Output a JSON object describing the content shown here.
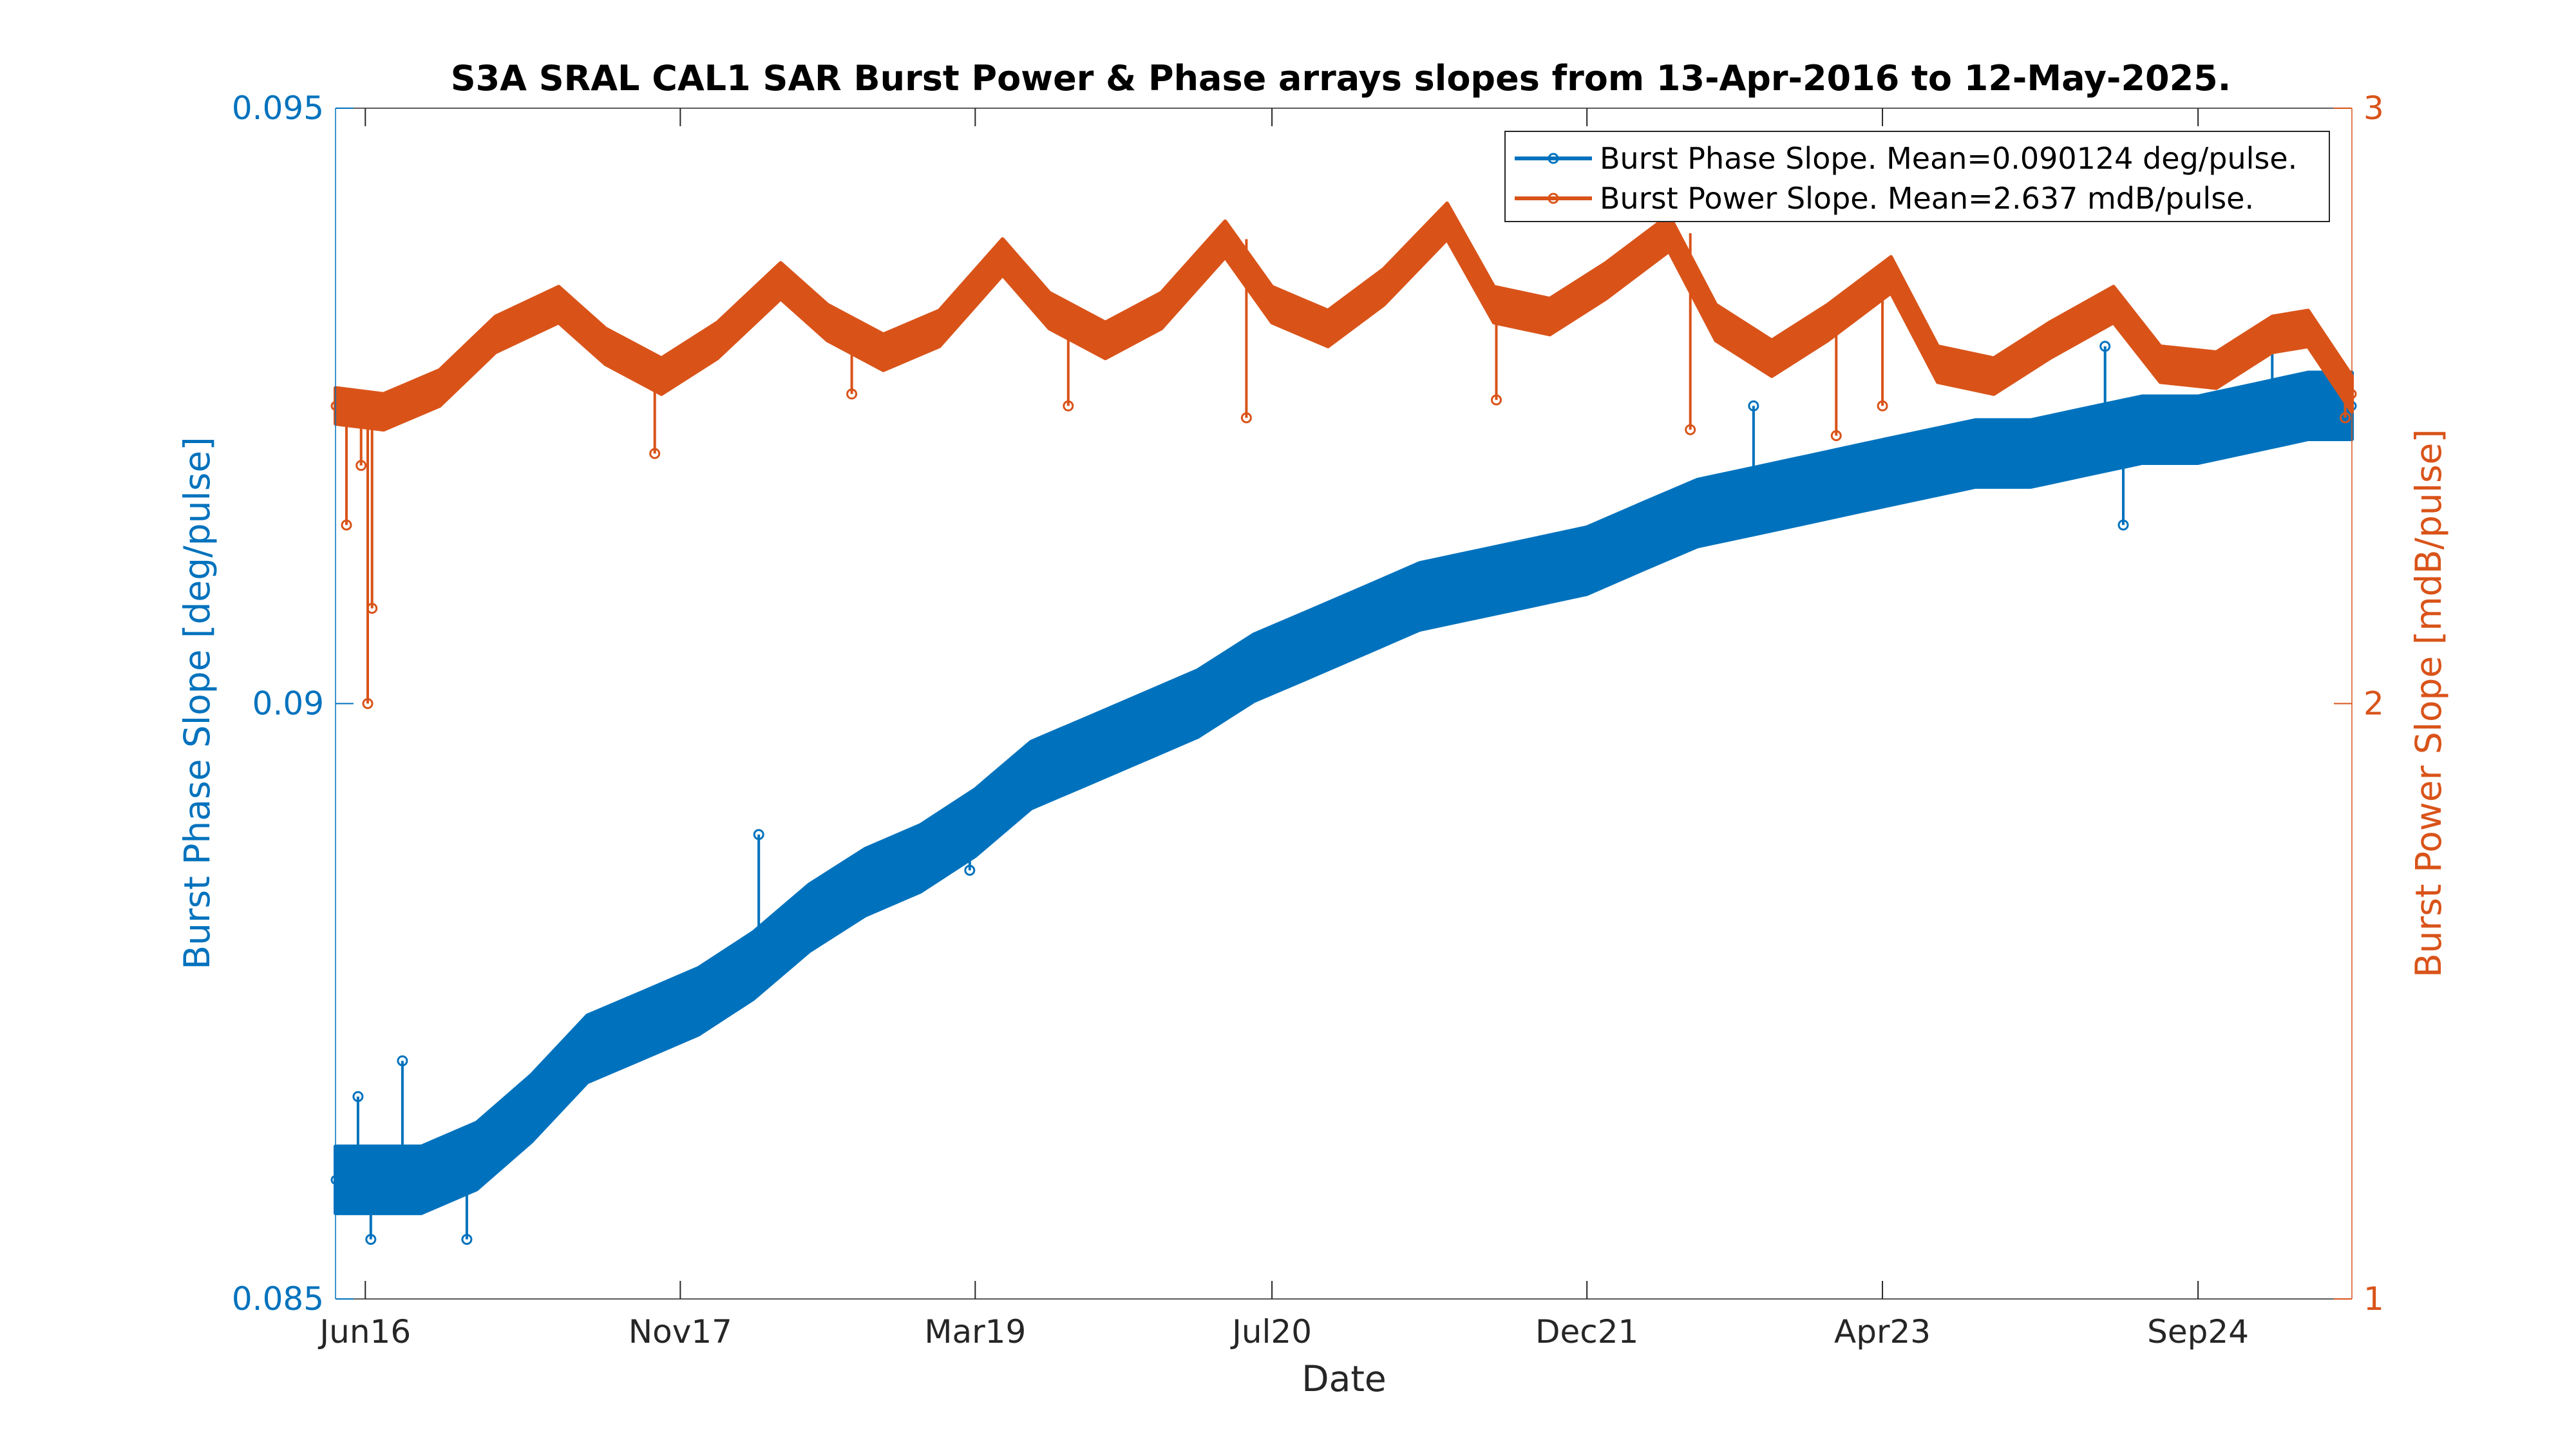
{
  "chart_data": {
    "type": "line",
    "title": "S3A SRAL CAL1 SAR Burst Power & Phase arrays slopes from 13-Apr-2016 to 12-May-2025.",
    "xlabel": "Date",
    "x_range": [
      "2016-04-13",
      "2025-05-12"
    ],
    "x_ticks": [
      {
        "date": "2016-06-01",
        "label": "Jun16"
      },
      {
        "date": "2017-11-01",
        "label": "Nov17"
      },
      {
        "date": "2019-03-01",
        "label": "Mar19"
      },
      {
        "date": "2020-07-01",
        "label": "Jul20"
      },
      {
        "date": "2021-12-01",
        "label": "Dec21"
      },
      {
        "date": "2023-04-01",
        "label": "Apr23"
      },
      {
        "date": "2024-09-01",
        "label": "Sep24"
      }
    ],
    "y_left": {
      "label": "Burst Phase Slope [deg/pulse]",
      "lim": [
        0.085,
        0.095
      ],
      "ticks": [
        "0.085",
        "0.09",
        "0.095"
      ],
      "color": "#0072BD"
    },
    "y_right": {
      "label": "Burst Power Slope [mdB/pulse]",
      "lim": [
        1,
        3
      ],
      "ticks": [
        "1",
        "2",
        "3"
      ],
      "color": "#D95319"
    },
    "legend_position": "top-right",
    "series": [
      {
        "name": "Burst Phase Slope. Mean=0.090124 deg/pulse.",
        "axis": "left",
        "color": "#0072BD",
        "band_halfwidth": 0.00028,
        "points": [
          {
            "x": "2016-04-13",
            "y": 0.086
          },
          {
            "x": "2016-06-01",
            "y": 0.086
          },
          {
            "x": "2016-09-01",
            "y": 0.086
          },
          {
            "x": "2016-12-01",
            "y": 0.0862
          },
          {
            "x": "2017-03-01",
            "y": 0.0866
          },
          {
            "x": "2017-06-01",
            "y": 0.0871
          },
          {
            "x": "2017-09-01",
            "y": 0.0873
          },
          {
            "x": "2017-12-01",
            "y": 0.0875
          },
          {
            "x": "2018-03-01",
            "y": 0.0878
          },
          {
            "x": "2018-06-01",
            "y": 0.0882
          },
          {
            "x": "2018-09-01",
            "y": 0.0885
          },
          {
            "x": "2018-12-01",
            "y": 0.0887
          },
          {
            "x": "2019-03-01",
            "y": 0.089
          },
          {
            "x": "2019-06-01",
            "y": 0.0894
          },
          {
            "x": "2019-09-01",
            "y": 0.0896
          },
          {
            "x": "2019-12-01",
            "y": 0.0898
          },
          {
            "x": "2020-03-01",
            "y": 0.09
          },
          {
            "x": "2020-06-01",
            "y": 0.0903
          },
          {
            "x": "2020-09-01",
            "y": 0.0905
          },
          {
            "x": "2020-12-01",
            "y": 0.0907
          },
          {
            "x": "2021-03-01",
            "y": 0.0909
          },
          {
            "x": "2021-06-01",
            "y": 0.091
          },
          {
            "x": "2021-09-01",
            "y": 0.0911
          },
          {
            "x": "2021-12-01",
            "y": 0.0912
          },
          {
            "x": "2022-03-01",
            "y": 0.0914
          },
          {
            "x": "2022-06-01",
            "y": 0.0916
          },
          {
            "x": "2022-09-01",
            "y": 0.0917
          },
          {
            "x": "2022-12-01",
            "y": 0.0918
          },
          {
            "x": "2023-03-01",
            "y": 0.0919
          },
          {
            "x": "2023-06-01",
            "y": 0.092
          },
          {
            "x": "2023-09-01",
            "y": 0.0921
          },
          {
            "x": "2023-12-01",
            "y": 0.0921
          },
          {
            "x": "2024-03-01",
            "y": 0.0922
          },
          {
            "x": "2024-06-01",
            "y": 0.0923
          },
          {
            "x": "2024-09-01",
            "y": 0.0923
          },
          {
            "x": "2024-12-01",
            "y": 0.0924
          },
          {
            "x": "2025-03-01",
            "y": 0.0925
          },
          {
            "x": "2025-05-12",
            "y": 0.0925
          }
        ],
        "outliers": [
          {
            "x": "2016-05-20",
            "y": 0.0867
          },
          {
            "x": "2016-08-01",
            "y": 0.087
          },
          {
            "x": "2016-06-10",
            "y": 0.0855
          },
          {
            "x": "2016-11-15",
            "y": 0.0855
          },
          {
            "x": "2018-03-10",
            "y": 0.0889
          },
          {
            "x": "2019-01-20",
            "y": 0.089
          },
          {
            "x": "2019-02-20",
            "y": 0.0886
          },
          {
            "x": "2020-02-10",
            "y": 0.0902
          },
          {
            "x": "2020-10-01",
            "y": 0.0908
          },
          {
            "x": "2022-02-01",
            "y": 0.0915
          },
          {
            "x": "2022-09-01",
            "y": 0.0925
          },
          {
            "x": "2024-04-01",
            "y": 0.093
          },
          {
            "x": "2024-05-01",
            "y": 0.0915
          },
          {
            "x": "2025-01-01",
            "y": 0.0932
          }
        ]
      },
      {
        "name": "Burst Power Slope. Mean=2.637 mdB/pulse.",
        "axis": "right",
        "color": "#D95319",
        "band_halfwidth": 0.03,
        "points": [
          {
            "x": "2016-04-13",
            "y": 2.5
          },
          {
            "x": "2016-07-01",
            "y": 2.49
          },
          {
            "x": "2016-10-01",
            "y": 2.53
          },
          {
            "x": "2017-01-01",
            "y": 2.62
          },
          {
            "x": "2017-04-15",
            "y": 2.67
          },
          {
            "x": "2017-07-01",
            "y": 2.6
          },
          {
            "x": "2017-10-01",
            "y": 2.55
          },
          {
            "x": "2018-01-01",
            "y": 2.61
          },
          {
            "x": "2018-04-15",
            "y": 2.71
          },
          {
            "x": "2018-07-01",
            "y": 2.64
          },
          {
            "x": "2018-10-01",
            "y": 2.59
          },
          {
            "x": "2019-01-01",
            "y": 2.63
          },
          {
            "x": "2019-04-15",
            "y": 2.75
          },
          {
            "x": "2019-07-01",
            "y": 2.66
          },
          {
            "x": "2019-10-01",
            "y": 2.61
          },
          {
            "x": "2020-01-01",
            "y": 2.66
          },
          {
            "x": "2020-04-15",
            "y": 2.78
          },
          {
            "x": "2020-07-01",
            "y": 2.67
          },
          {
            "x": "2020-10-01",
            "y": 2.63
          },
          {
            "x": "2021-01-01",
            "y": 2.7
          },
          {
            "x": "2021-04-15",
            "y": 2.81
          },
          {
            "x": "2021-07-01",
            "y": 2.67
          },
          {
            "x": "2021-10-01",
            "y": 2.65
          },
          {
            "x": "2022-01-01",
            "y": 2.71
          },
          {
            "x": "2022-04-15",
            "y": 2.79
          },
          {
            "x": "2022-07-01",
            "y": 2.64
          },
          {
            "x": "2022-10-01",
            "y": 2.58
          },
          {
            "x": "2023-01-01",
            "y": 2.64
          },
          {
            "x": "2023-04-15",
            "y": 2.72
          },
          {
            "x": "2023-07-01",
            "y": 2.57
          },
          {
            "x": "2023-10-01",
            "y": 2.55
          },
          {
            "x": "2024-01-01",
            "y": 2.61
          },
          {
            "x": "2024-04-15",
            "y": 2.67
          },
          {
            "x": "2024-07-01",
            "y": 2.57
          },
          {
            "x": "2024-10-01",
            "y": 2.56
          },
          {
            "x": "2025-01-01",
            "y": 2.62
          },
          {
            "x": "2025-03-01",
            "y": 2.63
          },
          {
            "x": "2025-05-12",
            "y": 2.52
          }
        ],
        "outliers": [
          {
            "x": "2016-05-01",
            "y": 2.3
          },
          {
            "x": "2016-05-25",
            "y": 2.4
          },
          {
            "x": "2016-06-05",
            "y": 2.0
          },
          {
            "x": "2016-06-12",
            "y": 2.16
          },
          {
            "x": "2017-09-20",
            "y": 2.42
          },
          {
            "x": "2018-08-10",
            "y": 2.52
          },
          {
            "x": "2019-08-01",
            "y": 2.5
          },
          {
            "x": "2020-05-20",
            "y": 2.48
          },
          {
            "x": "2021-07-05",
            "y": 2.51
          },
          {
            "x": "2022-05-20",
            "y": 2.46
          },
          {
            "x": "2023-01-15",
            "y": 2.45
          },
          {
            "x": "2023-04-01",
            "y": 2.5
          },
          {
            "x": "2025-05-01",
            "y": 2.48
          }
        ]
      }
    ]
  }
}
